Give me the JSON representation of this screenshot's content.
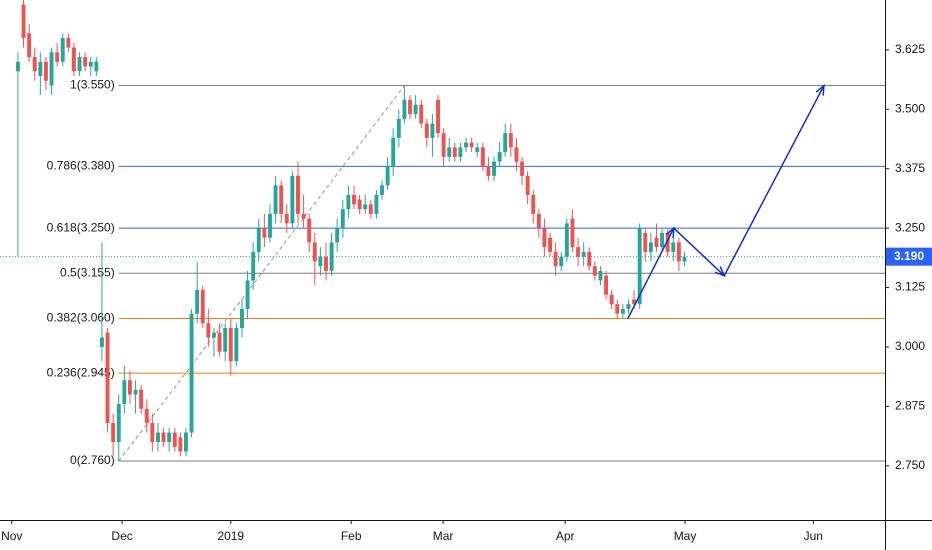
{
  "chart_data": {
    "type": "candlestick",
    "xlim": [
      -3.2,
      154.8
    ],
    "ylim": [
      2.636,
      3.73
    ],
    "xticks": [
      {
        "value": -1.1,
        "label": "Nov"
      },
      {
        "value": 18.6,
        "label": "Dec"
      },
      {
        "value": 38,
        "label": "2019"
      },
      {
        "value": 59.5,
        "label": "Feb"
      },
      {
        "value": 75.9,
        "label": "Mar"
      },
      {
        "value": 97.7,
        "label": "Apr"
      },
      {
        "value": 119.1,
        "label": "May"
      },
      {
        "value": 142,
        "label": "Jun"
      }
    ],
    "yticks": [
      3.625,
      {
        "value": 3.5,
        "label": "3.500"
      },
      3.375,
      {
        "value": 3.25,
        "label": "3.250"
      },
      3.125,
      {
        "value": 3.0,
        "label": "3.000"
      },
      2.875,
      {
        "value": 2.75,
        "label": "2.750"
      }
    ],
    "up_color": "#26a69a",
    "down_color": "#ef5350",
    "candles": [
      [
        3.58,
        3.62,
        3.19,
        3.6
      ],
      [
        3.72,
        3.73,
        3.63,
        3.65
      ],
      [
        3.66,
        3.68,
        3.6,
        3.61
      ],
      [
        3.61,
        3.63,
        3.56,
        3.58
      ],
      [
        3.57,
        3.62,
        3.53,
        3.6
      ],
      [
        3.6,
        3.61,
        3.54,
        3.56
      ],
      [
        3.55,
        3.63,
        3.53,
        3.62
      ],
      [
        3.62,
        3.64,
        3.59,
        3.6
      ],
      [
        3.6,
        3.66,
        3.59,
        3.65
      ],
      [
        3.65,
        3.66,
        3.62,
        3.63
      ],
      [
        3.63,
        3.64,
        3.57,
        3.58
      ],
      [
        3.58,
        3.62,
        3.57,
        3.61
      ],
      [
        3.61,
        3.62,
        3.58,
        3.59
      ],
      [
        3.59,
        3.61,
        3.57,
        3.6
      ],
      [
        3.58,
        3.61,
        3.57,
        3.6
      ],
      [
        3.0,
        3.22,
        2.97,
        3.02
      ],
      [
        3.03,
        3.04,
        2.82,
        2.84
      ],
      [
        2.84,
        2.86,
        2.77,
        2.8
      ],
      [
        2.8,
        2.9,
        2.76,
        2.88
      ],
      [
        2.88,
        2.96,
        2.86,
        2.93
      ],
      [
        2.93,
        2.95,
        2.88,
        2.9
      ],
      [
        2.9,
        2.93,
        2.86,
        2.91
      ],
      [
        2.91,
        2.92,
        2.86,
        2.87
      ],
      [
        2.87,
        2.89,
        2.82,
        2.84
      ],
      [
        2.84,
        2.86,
        2.78,
        2.8
      ],
      [
        2.8,
        2.84,
        2.78,
        2.82
      ],
      [
        2.82,
        2.83,
        2.79,
        2.8
      ],
      [
        2.8,
        2.83,
        2.78,
        2.82
      ],
      [
        2.82,
        2.83,
        2.78,
        2.79
      ],
      [
        2.81,
        2.82,
        2.77,
        2.78
      ],
      [
        2.78,
        2.83,
        2.77,
        2.82
      ],
      [
        2.82,
        3.08,
        2.81,
        3.07
      ],
      [
        3.07,
        3.18,
        3.05,
        3.12
      ],
      [
        3.12,
        3.13,
        3.04,
        3.05
      ],
      [
        3.05,
        3.08,
        3.0,
        3.02
      ],
      [
        3.02,
        3.04,
        2.98,
        3.03
      ],
      [
        3.03,
        3.05,
        2.98,
        2.99
      ],
      [
        2.99,
        3.05,
        2.97,
        3.04
      ],
      [
        3.04,
        3.06,
        2.94,
        2.97
      ],
      [
        2.97,
        3.05,
        2.96,
        3.04
      ],
      [
        3.04,
        3.1,
        3.02,
        3.08
      ],
      [
        3.08,
        3.16,
        3.06,
        3.14
      ],
      [
        3.14,
        3.22,
        3.12,
        3.2
      ],
      [
        3.2,
        3.27,
        3.18,
        3.25
      ],
      [
        3.25,
        3.28,
        3.21,
        3.23
      ],
      [
        3.23,
        3.3,
        3.22,
        3.28
      ],
      [
        3.28,
        3.36,
        3.26,
        3.34
      ],
      [
        3.34,
        3.35,
        3.26,
        3.28
      ],
      [
        3.28,
        3.3,
        3.24,
        3.26
      ],
      [
        3.26,
        3.37,
        3.25,
        3.36
      ],
      [
        3.36,
        3.39,
        3.26,
        3.28
      ],
      [
        3.28,
        3.32,
        3.25,
        3.27
      ],
      [
        3.27,
        3.28,
        3.2,
        3.22
      ],
      [
        3.22,
        3.24,
        3.13,
        3.18
      ],
      [
        3.17,
        3.21,
        3.15,
        3.19
      ],
      [
        3.19,
        3.22,
        3.14,
        3.16
      ],
      [
        3.16,
        3.24,
        3.15,
        3.22
      ],
      [
        3.22,
        3.27,
        3.2,
        3.25
      ],
      [
        3.25,
        3.31,
        3.23,
        3.29
      ],
      [
        3.29,
        3.34,
        3.27,
        3.32
      ],
      [
        3.32,
        3.34,
        3.29,
        3.3
      ],
      [
        3.31,
        3.32,
        3.28,
        3.29
      ],
      [
        3.29,
        3.32,
        3.28,
        3.3
      ],
      [
        3.3,
        3.31,
        3.27,
        3.28
      ],
      [
        3.28,
        3.33,
        3.27,
        3.32
      ],
      [
        3.32,
        3.35,
        3.31,
        3.34
      ],
      [
        3.34,
        3.4,
        3.33,
        3.38
      ],
      [
        3.38,
        3.46,
        3.36,
        3.44
      ],
      [
        3.44,
        3.5,
        3.42,
        3.48
      ],
      [
        3.48,
        3.55,
        3.47,
        3.52
      ],
      [
        3.52,
        3.53,
        3.48,
        3.49
      ],
      [
        3.49,
        3.53,
        3.48,
        3.51
      ],
      [
        3.51,
        3.52,
        3.46,
        3.47
      ],
      [
        3.47,
        3.48,
        3.42,
        3.44
      ],
      [
        3.44,
        3.49,
        3.4,
        3.47
      ],
      [
        3.52,
        3.53,
        3.44,
        3.45
      ],
      [
        3.45,
        3.46,
        3.38,
        3.4
      ],
      [
        3.4,
        3.44,
        3.39,
        3.42
      ],
      [
        3.42,
        3.43,
        3.39,
        3.4
      ],
      [
        3.4,
        3.43,
        3.39,
        3.42
      ],
      [
        3.42,
        3.44,
        3.41,
        3.43
      ],
      [
        3.43,
        3.44,
        3.41,
        3.42
      ],
      [
        3.41,
        3.43,
        3.4,
        3.42
      ],
      [
        3.42,
        3.43,
        3.37,
        3.38
      ],
      [
        3.38,
        3.4,
        3.35,
        3.36
      ],
      [
        3.36,
        3.4,
        3.35,
        3.39
      ],
      [
        3.39,
        3.43,
        3.38,
        3.41
      ],
      [
        3.41,
        3.47,
        3.4,
        3.45
      ],
      [
        3.45,
        3.47,
        3.4,
        3.42
      ],
      [
        3.42,
        3.44,
        3.37,
        3.39
      ],
      [
        3.39,
        3.4,
        3.34,
        3.36
      ],
      [
        3.36,
        3.37,
        3.3,
        3.32
      ],
      [
        3.32,
        3.33,
        3.26,
        3.28
      ],
      [
        3.28,
        3.29,
        3.23,
        3.25
      ],
      [
        3.25,
        3.27,
        3.19,
        3.21
      ],
      [
        3.23,
        3.24,
        3.19,
        3.2
      ],
      [
        3.2,
        3.22,
        3.15,
        3.17
      ],
      [
        3.17,
        3.2,
        3.16,
        3.19
      ],
      [
        3.19,
        3.27,
        3.18,
        3.26
      ],
      [
        3.27,
        3.29,
        3.2,
        3.21
      ],
      [
        3.21,
        3.23,
        3.17,
        3.19
      ],
      [
        3.19,
        3.22,
        3.17,
        3.2
      ],
      [
        3.2,
        3.21,
        3.16,
        3.17
      ],
      [
        3.17,
        3.18,
        3.14,
        3.15
      ],
      [
        3.14,
        3.17,
        3.13,
        3.16
      ],
      [
        3.15,
        3.16,
        3.1,
        3.11
      ],
      [
        3.11,
        3.12,
        3.08,
        3.09
      ],
      [
        3.09,
        3.1,
        3.06,
        3.07
      ],
      [
        3.07,
        3.09,
        3.06,
        3.08
      ],
      [
        3.08,
        3.1,
        3.07,
        3.09
      ],
      [
        3.1,
        3.12,
        3.08,
        3.09
      ],
      [
        3.09,
        3.26,
        3.08,
        3.25
      ],
      [
        3.24,
        3.25,
        3.18,
        3.2
      ],
      [
        3.2,
        3.24,
        3.18,
        3.22
      ],
      [
        3.23,
        3.26,
        3.2,
        3.21
      ],
      [
        3.21,
        3.25,
        3.2,
        3.24
      ],
      [
        3.24,
        3.25,
        3.19,
        3.2
      ],
      [
        3.2,
        3.23,
        3.18,
        3.22
      ],
      [
        3.22,
        3.23,
        3.16,
        3.18
      ],
      [
        3.18,
        3.2,
        3.17,
        3.19
      ]
    ],
    "fib_levels": [
      {
        "label": "1(3.550)",
        "value": 3.55,
        "color": "#787b86"
      },
      {
        "label": "0.786(3.380)",
        "value": 3.38,
        "color": "#2962ff"
      },
      {
        "label": "0.618(3.250)",
        "value": 3.25,
        "color": "#2962ff"
      },
      {
        "label": "0.5(3.155)",
        "value": 3.155,
        "color": "#787b86"
      },
      {
        "label": "0.382(3.060)",
        "value": 3.06,
        "color": "#f57c00"
      },
      {
        "label": "0.236(2.945)",
        "value": 2.945,
        "color": "#f57c00"
      },
      {
        "label": "0(2.760)",
        "value": 2.76,
        "color": "#787b86"
      }
    ],
    "fib_start": 18,
    "fib_trend": {
      "x": [
        18,
        69
      ],
      "y": [
        2.76,
        3.55
      ]
    },
    "projection": {
      "color": "#0d2dd6",
      "x": [
        108.9,
        117.1,
        126.1,
        143.9
      ],
      "y": [
        3.06,
        3.25,
        3.15,
        3.55
      ]
    },
    "last_price": 3.19,
    "last_price_label": "3.190",
    "last_price_color": "#2962ff"
  }
}
